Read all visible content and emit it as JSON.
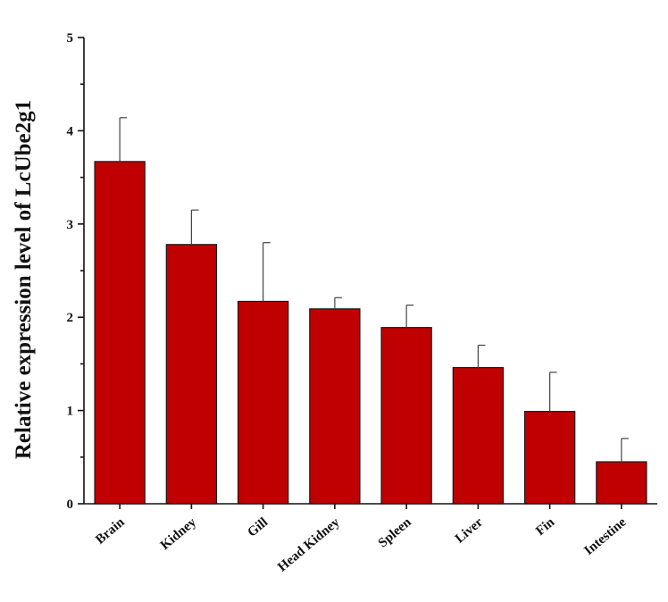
{
  "chart_data": {
    "type": "bar",
    "title": "",
    "xlabel": "",
    "ylabel": "Relative expression level of LcUbe2g1",
    "categories": [
      "Brain",
      "Kidney",
      "Gill",
      "Head Kidney",
      "Spleen",
      "Liver",
      "Fin",
      "Intestine"
    ],
    "values": [
      3.67,
      2.78,
      2.17,
      2.09,
      1.89,
      1.46,
      0.99,
      0.45
    ],
    "error": [
      0.47,
      0.37,
      0.63,
      0.12,
      0.24,
      0.24,
      0.42,
      0.25
    ],
    "ylim": [
      0,
      5
    ],
    "yticks": [
      0,
      1,
      2,
      3,
      4,
      5
    ],
    "grid": false,
    "bar_color": "#c00000"
  }
}
